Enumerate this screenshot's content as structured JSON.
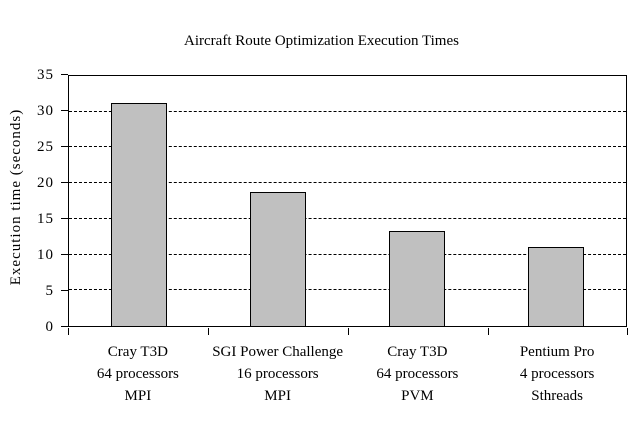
{
  "chart_data": {
    "type": "bar",
    "title": "Aircraft Route Optimization Execution Times",
    "xlabel": "",
    "ylabel": "Execution time (seconds)",
    "categories": [
      [
        "Cray T3D",
        "64 processors",
        "MPI"
      ],
      [
        "SGI Power Challenge",
        "16 processors",
        "MPI"
      ],
      [
        "Cray T3D",
        "64 processors",
        "PVM"
      ],
      [
        "Pentium Pro",
        "4 processors",
        "Sthreads"
      ]
    ],
    "values": [
      31.2,
      18.7,
      13.3,
      11.0
    ],
    "ylim": [
      0,
      35
    ],
    "yticks": [
      0,
      5,
      10,
      15,
      20,
      25,
      30,
      35
    ],
    "gridlines": {
      "values": [
        5,
        10,
        15,
        20,
        25,
        30
      ],
      "style": "dashed"
    },
    "legend": "none",
    "plot_frame": true,
    "colors": {
      "bar_fill": "#c0c0c0",
      "bar_border": "#000000",
      "axis": "#000000",
      "grid": "#000000",
      "background": "#ffffff",
      "text": "#000000"
    }
  }
}
